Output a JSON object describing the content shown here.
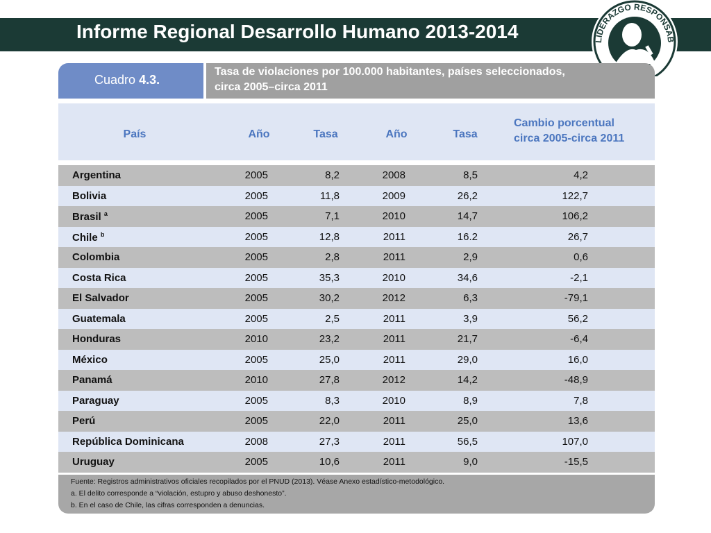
{
  "header": {
    "title": "Informe Regional Desarrollo Humano 2013-2014"
  },
  "logo": {
    "text": "LIDERAZGO RESPONSABLE",
    "icon": "portrait-seal-logo"
  },
  "table": {
    "cuadro_label": "Cuadro",
    "cuadro_number": "4.3.",
    "title_line1": "Tasa de violaciones por 100.000 habitantes, países seleccionados,",
    "title_line2": "circa 2005–circa 2011",
    "headers": {
      "pais": "País",
      "anio1": "Año",
      "tasa1": "Tasa",
      "anio2": "Año",
      "tasa2": "Tasa",
      "cambio_line1": "Cambio porcentual",
      "cambio_line2": "circa 2005-circa 2011"
    },
    "rows": [
      {
        "pais": "Argentina",
        "sup": "",
        "a1": "2005",
        "t1": "8,2",
        "a2": "2008",
        "t2": "8,5",
        "cambio": "4,2"
      },
      {
        "pais": "Bolivia",
        "sup": "",
        "a1": "2005",
        "t1": "11,8",
        "a2": "2009",
        "t2": "26,2",
        "cambio": "122,7"
      },
      {
        "pais": "Brasil",
        "sup": "a",
        "a1": "2005",
        "t1": "7,1",
        "a2": "2010",
        "t2": "14,7",
        "cambio": "106,2"
      },
      {
        "pais": "Chile",
        "sup": "b",
        "a1": "2005",
        "t1": "12,8",
        "a2": "2011",
        "t2": "16.2",
        "cambio": "26,7"
      },
      {
        "pais": "Colombia",
        "sup": "",
        "a1": "2005",
        "t1": "2,8",
        "a2": "2011",
        "t2": "2,9",
        "cambio": "0,6"
      },
      {
        "pais": "Costa Rica",
        "sup": "",
        "a1": "2005",
        "t1": "35,3",
        "a2": "2010",
        "t2": "34,6",
        "cambio": "-2,1"
      },
      {
        "pais": "El Salvador",
        "sup": "",
        "a1": "2005",
        "t1": "30,2",
        "a2": "2012",
        "t2": "6,3",
        "cambio": "-79,1"
      },
      {
        "pais": "Guatemala",
        "sup": "",
        "a1": "2005",
        "t1": "2,5",
        "a2": "2011",
        "t2": "3,9",
        "cambio": "56,2"
      },
      {
        "pais": "Honduras",
        "sup": "",
        "a1": "2010",
        "t1": "23,2",
        "a2": "2011",
        "t2": "21,7",
        "cambio": "-6,4"
      },
      {
        "pais": "México",
        "sup": "",
        "a1": "2005",
        "t1": "25,0",
        "a2": "2011",
        "t2": "29,0",
        "cambio": "16,0"
      },
      {
        "pais": "Panamá",
        "sup": "",
        "a1": "2010",
        "t1": "27,8",
        "a2": "2012",
        "t2": "14,2",
        "cambio": "-48,9"
      },
      {
        "pais": "Paraguay",
        "sup": "",
        "a1": "2005",
        "t1": "8,3",
        "a2": "2010",
        "t2": "8,9",
        "cambio": "7,8"
      },
      {
        "pais": "Perú",
        "sup": "",
        "a1": "2005",
        "t1": "22,0",
        "a2": "2011",
        "t2": "25,0",
        "cambio": "13,6"
      },
      {
        "pais": "República Dominicana",
        "sup": "",
        "a1": "2008",
        "t1": "27,3",
        "a2": "2011",
        "t2": "56,5",
        "cambio": "107,0"
      },
      {
        "pais": "Uruguay",
        "sup": "",
        "a1": "2005",
        "t1": "10,6",
        "a2": "2011",
        "t2": "9,0",
        "cambio": "-15,5"
      }
    ],
    "footnotes": {
      "fuente": "Fuente: Registros administrativos oficiales recopilados por el PNUD (2013). Véase Anexo estadístico-metodológico.",
      "a": "a. El delito corresponde a “violación, estupro y abuso deshonesto”.",
      "b": "b. En el caso de Chile, las cifras corresponden a denuncias."
    }
  },
  "colors": {
    "title_bar": "#1b3a35",
    "cuadro_badge": "#6f8cc7",
    "header_text": "#4b76bf",
    "row_gray": "#bdbdbd",
    "row_light": "#dfe6f4"
  }
}
